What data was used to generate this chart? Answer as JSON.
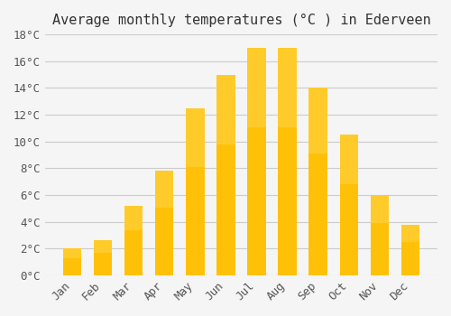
{
  "title": "Average monthly temperatures (°C ) in Ederveen",
  "months": [
    "Jan",
    "Feb",
    "Mar",
    "Apr",
    "May",
    "Jun",
    "Jul",
    "Aug",
    "Sep",
    "Oct",
    "Nov",
    "Dec"
  ],
  "values": [
    2.0,
    2.6,
    5.2,
    7.8,
    12.5,
    15.0,
    17.0,
    17.0,
    14.0,
    10.5,
    6.0,
    3.8
  ],
  "bar_color_top": "#FFC107",
  "bar_color_bottom": "#FFB300",
  "ylim": [
    0,
    18
  ],
  "yticks": [
    0,
    2,
    4,
    6,
    8,
    10,
    12,
    14,
    16,
    18
  ],
  "ytick_labels": [
    "0°C",
    "2°C",
    "4°C",
    "6°C",
    "8°C",
    "10°C",
    "12°C",
    "14°C",
    "16°C",
    "18°C"
  ],
  "grid_color": "#cccccc",
  "background_color": "#f5f5f5",
  "title_fontsize": 11,
  "tick_fontsize": 9,
  "bar_edge_color": "none",
  "font_family": "monospace"
}
